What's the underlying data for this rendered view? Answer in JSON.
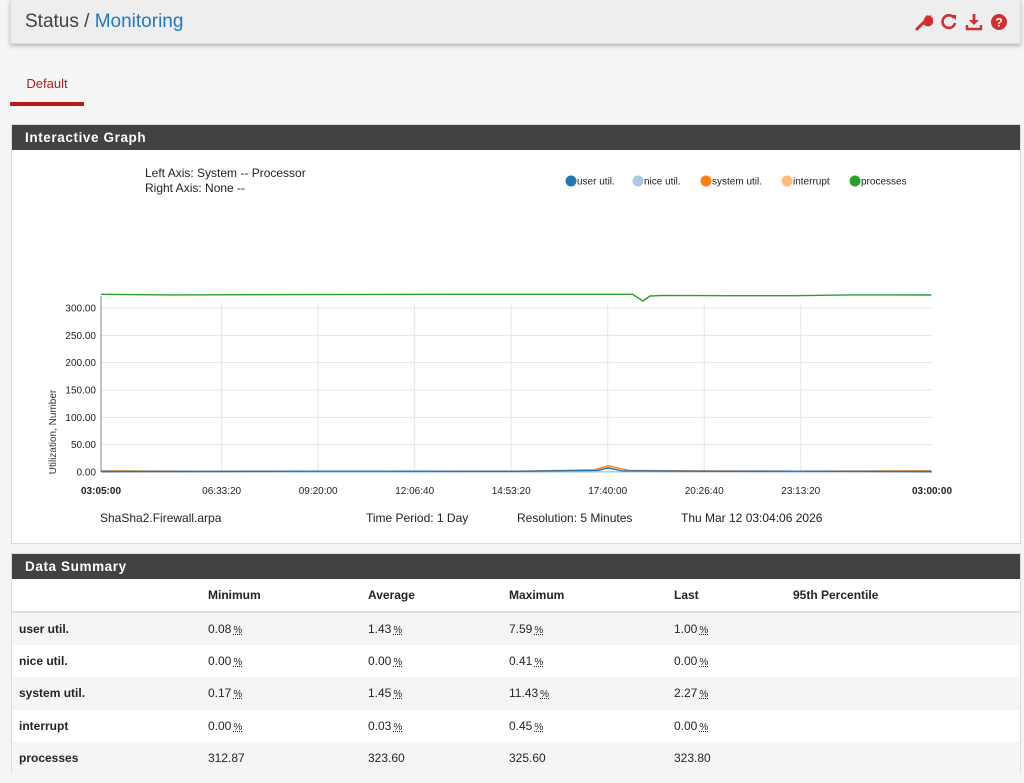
{
  "breadcrumb": {
    "parent": "Status",
    "separator": " / ",
    "current": "Monitoring"
  },
  "toolbar": {
    "icons": [
      "wrench-icon",
      "refresh-icon",
      "download-icon",
      "help-icon"
    ],
    "accent": "#d32f2f"
  },
  "tabs": [
    {
      "label": "Default",
      "active": true
    }
  ],
  "graph_panel": {
    "title": "Interactive Graph",
    "left_axis": "Left Axis: System -- Processor",
    "right_axis": "Right Axis: None --",
    "footer": {
      "host": "ShaSha2.Firewall.arpa",
      "period": "Time Period: 1 Day",
      "resolution": "Resolution: 5 Minutes",
      "date": "Thu Mar 12 03:04:06 2026"
    }
  },
  "chart_data": {
    "type": "line",
    "ylabel": "Utilization, Number",
    "ylim": [
      0,
      330
    ],
    "yticks": [
      "300.00",
      "250.00",
      "200.00",
      "150.00",
      "100.00",
      "50.00",
      "0.00"
    ],
    "ytick_values": [
      300,
      250,
      200,
      150,
      100,
      50,
      0
    ],
    "xticks": [
      "03:05:00",
      "06:33:20",
      "09:20:00",
      "12:06:40",
      "14:53:20",
      "17:40:00",
      "20:26:40",
      "23:13:20",
      "03:00:00"
    ],
    "x_hours": [
      0,
      3.4722,
      6.25,
      9.0278,
      11.8056,
      14.5833,
      17.3611,
      20.1389,
      23.9167
    ],
    "grid": true,
    "legend_position": "top-right",
    "series": [
      {
        "name": "user util.",
        "color": "#1f77b4",
        "x": [
          0,
          6,
          12,
          14.3,
          14.6,
          15,
          18,
          20,
          23.9
        ],
        "values": [
          1,
          1.5,
          1.2,
          3,
          7.59,
          2,
          1.3,
          1.5,
          1.0
        ]
      },
      {
        "name": "nice util.",
        "color": "#aec7e8",
        "x": [
          0,
          12,
          14.6,
          23.9
        ],
        "values": [
          0,
          0,
          0.41,
          0
        ]
      },
      {
        "name": "system util.",
        "color": "#ff7f0e",
        "x": [
          0,
          3,
          6,
          12,
          14.2,
          14.6,
          15.2,
          17.5,
          20,
          23.9
        ],
        "values": [
          2,
          1.3,
          1.5,
          1.4,
          4,
          11.43,
          3,
          2,
          1.5,
          2.27
        ]
      },
      {
        "name": "interrupt",
        "color": "#ffbb78",
        "x": [
          0,
          14.6,
          23.9
        ],
        "values": [
          0,
          0.45,
          0
        ]
      },
      {
        "name": "processes",
        "color": "#2ca02c",
        "x": [
          0,
          2,
          6,
          10,
          14,
          15.3,
          15.6,
          15.8,
          16.2,
          18,
          20,
          21.5,
          23.9
        ],
        "values": [
          325,
          324,
          324.5,
          325,
          325,
          325,
          312.87,
          322,
          323,
          322.5,
          322.5,
          324,
          323.8
        ]
      }
    ]
  },
  "summary_panel": {
    "title": "Data Summary",
    "columns": [
      "",
      "Minimum",
      "Average",
      "Maximum",
      "Last",
      "95th Percentile"
    ],
    "percent_sign": "%",
    "rows": [
      {
        "label": "user util.",
        "min": "0.08",
        "avg": "1.43",
        "max": "7.59",
        "last": "1.00",
        "p95": "",
        "pct": true
      },
      {
        "label": "nice util.",
        "min": "0.00",
        "avg": "0.00",
        "max": "0.41",
        "last": "0.00",
        "p95": "",
        "pct": true
      },
      {
        "label": "system util.",
        "min": "0.17",
        "avg": "1.45",
        "max": "11.43",
        "last": "2.27",
        "p95": "",
        "pct": true
      },
      {
        "label": "interrupt",
        "min": "0.00",
        "avg": "0.03",
        "max": "0.45",
        "last": "0.00",
        "p95": "",
        "pct": true
      },
      {
        "label": "processes",
        "min": "312.87",
        "avg": "323.60",
        "max": "325.60",
        "last": "323.80",
        "p95": "",
        "pct": false
      }
    ]
  }
}
